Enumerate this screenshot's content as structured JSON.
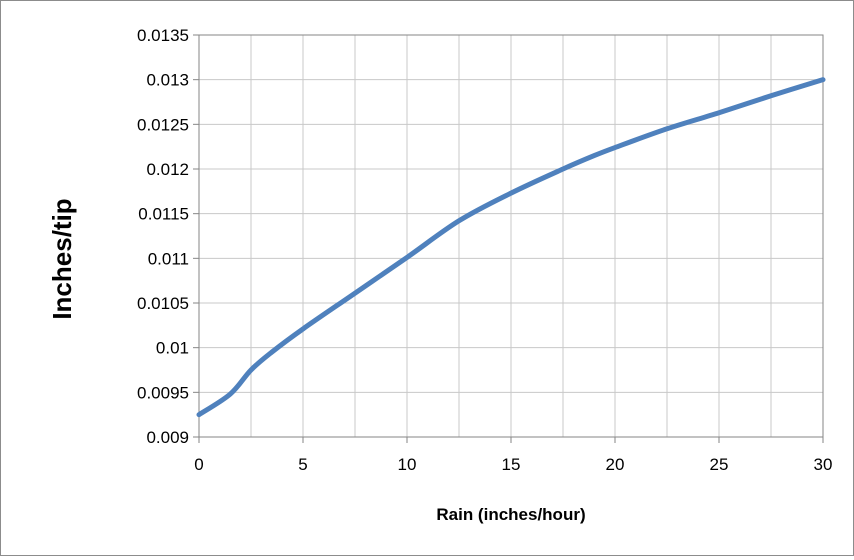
{
  "chart_data": {
    "type": "line",
    "title": "",
    "xlabel": "Rain (inches/hour)",
    "ylabel": "Inches/tip",
    "xlim": [
      0,
      30
    ],
    "ylim": [
      0.009,
      0.0135
    ],
    "x_ticks": [
      "0",
      "5",
      "10",
      "15",
      "20",
      "25",
      "30"
    ],
    "y_ticks": [
      "0.009",
      "0.0095",
      "0.01",
      "0.0105",
      "0.011",
      "0.0115",
      "0.012",
      "0.0125",
      "0.013",
      "0.0135"
    ],
    "grid": true,
    "legend": "none",
    "line_color": "#4f81bd",
    "series": [
      {
        "x": [
          0,
          1.5,
          2.5,
          3.5,
          5,
          7.5,
          10,
          12.5,
          15,
          17.5,
          19,
          20,
          22.5,
          25,
          27.5,
          30
        ],
        "y": [
          0.00925,
          0.00948,
          0.00975,
          0.00995,
          0.01021,
          0.01061,
          0.01101,
          0.01142,
          0.01173,
          0.012,
          0.01215,
          0.01224,
          0.01245,
          0.01263,
          0.01282,
          0.013
        ]
      }
    ]
  }
}
